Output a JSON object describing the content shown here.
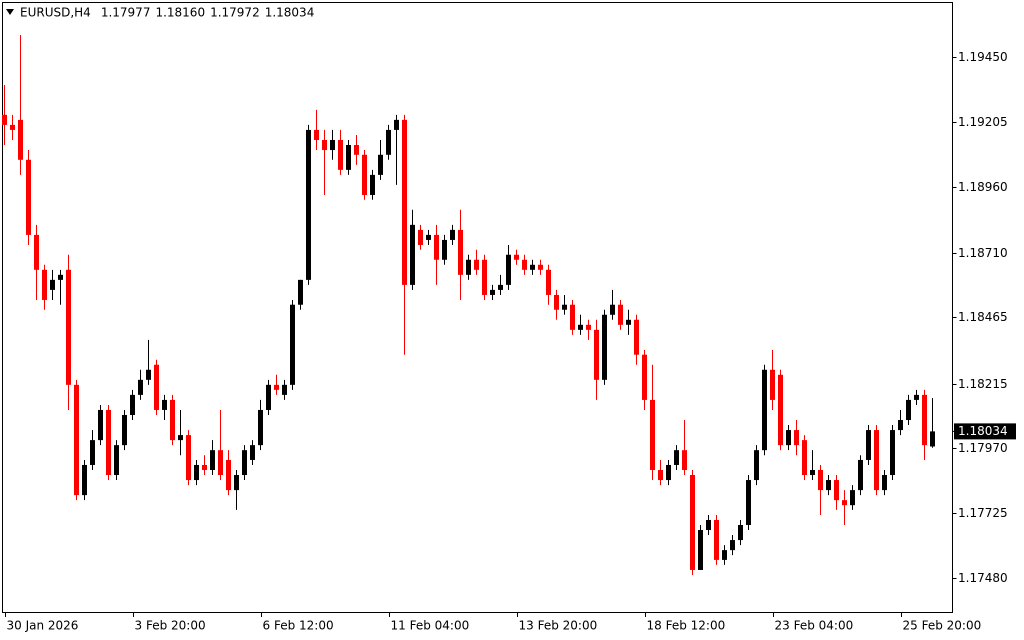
{
  "chart_data": {
    "type": "candlestick",
    "title": "EURUSD,H4",
    "info_labels": [
      "1.17977",
      "1.18160",
      "1.17972",
      "1.18034"
    ],
    "bull_color": "#000000",
    "bear_color": "#ff0000",
    "categories": [
      "30 Jan 2026",
      null,
      null,
      null,
      null,
      null,
      null,
      null,
      null,
      null,
      null,
      null,
      null,
      null,
      null,
      null,
      "3 Feb 20:00",
      null,
      null,
      null,
      null,
      null,
      null,
      null,
      null,
      null,
      null,
      null,
      null,
      null,
      null,
      null,
      "6 Feb 12:00",
      null,
      null,
      null,
      null,
      null,
      null,
      null,
      null,
      null,
      null,
      null,
      null,
      null,
      null,
      null,
      "11 Feb 04:00",
      null,
      null,
      null,
      null,
      null,
      null,
      null,
      null,
      null,
      null,
      null,
      null,
      null,
      null,
      null,
      "13 Feb 20:00",
      null,
      null,
      null,
      null,
      null,
      null,
      null,
      null,
      null,
      null,
      null,
      null,
      null,
      null,
      null,
      "18 Feb 12:00",
      null,
      null,
      null,
      null,
      null,
      null,
      null,
      null,
      null,
      null,
      null,
      null,
      null,
      null,
      null,
      "23 Feb 04:00",
      null,
      null,
      null,
      null,
      null,
      null,
      null,
      null,
      null,
      null,
      null,
      null,
      null,
      null,
      null,
      "25 Feb 20:00",
      null,
      null,
      null,
      null
    ],
    "open": [
      1.19231,
      1.19193,
      1.19212,
      1.19061,
      1.18777,
      1.18645,
      1.18569,
      1.18607,
      1.18645,
      1.1821,
      1.17793,
      1.17907,
      1.18001,
      1.18115,
      1.17869,
      1.17982,
      1.18096,
      1.18172,
      1.18229,
      1.18286,
      1.18115,
      1.18153,
      1.18001,
      1.1802,
      1.1785,
      1.17907,
      1.17888,
      1.17963,
      1.17926,
      1.17812,
      1.17869,
      1.17926,
      1.17982,
      1.18115,
      1.1821,
      1.18172,
      1.1821,
      1.18513,
      1.18607,
      1.19174,
      1.19136,
      1.19098,
      1.19136,
      1.19023,
      1.19117,
      1.1908,
      1.18928,
      1.19004,
      1.1908,
      1.19174,
      1.19212,
      1.18588,
      1.18796,
      1.18758,
      1.18777,
      1.18683,
      1.18758,
      1.18796,
      1.18626,
      1.18683,
      1.18683,
      1.1855,
      1.18569,
      1.18588,
      1.18702,
      1.18683,
      1.18645,
      1.18664,
      1.18645,
      1.1855,
      1.18494,
      1.18513,
      1.18418,
      1.18437,
      1.18418,
      1.18229,
      1.18475,
      1.18513,
      1.18437,
      1.18456,
      1.18324,
      1.18153,
      1.17888,
      1.1785,
      1.17907,
      1.17963,
      1.17869,
      1.1751,
      1.17661,
      1.17699,
      1.17548,
      1.17585,
      1.17623,
      1.1768,
      1.1785,
      1.17963,
      1.18267,
      1.18248,
      1.17982,
      1.18039,
      1.18001,
      1.17869,
      1.17888,
      1.17812,
      1.1785,
      1.17774,
      1.17755,
      1.17812,
      1.17926,
      1.18039,
      1.17812,
      1.17869,
      1.18039,
      1.18077,
      1.18153,
      1.18172,
      1.17977
    ],
    "high": [
      1.19344,
      1.19231,
      1.19533,
      1.19098,
      1.18815,
      1.18664,
      1.18645,
      1.18645,
      1.18702,
      1.18229,
      1.17926,
      1.18039,
      1.18134,
      1.18134,
      1.18001,
      1.18115,
      1.18191,
      1.18267,
      1.1838,
      1.18305,
      1.18172,
      1.18172,
      1.18115,
      1.18039,
      1.17926,
      1.17944,
      1.18001,
      1.18115,
      1.17963,
      1.17888,
      1.17982,
      1.18001,
      1.18153,
      1.18229,
      1.18248,
      1.18229,
      1.18531,
      1.18607,
      1.19193,
      1.1925,
      1.19174,
      1.19174,
      1.19174,
      1.19136,
      1.19155,
      1.19098,
      1.19023,
      1.19136,
      1.19193,
      1.19231,
      1.19231,
      1.18872,
      1.18815,
      1.18796,
      1.18815,
      1.18777,
      1.18815,
      1.18872,
      1.18702,
      1.18721,
      1.18702,
      1.18588,
      1.18626,
      1.18739,
      1.18721,
      1.18702,
      1.18683,
      1.18683,
      1.18664,
      1.18569,
      1.1855,
      1.18531,
      1.18475,
      1.18456,
      1.18456,
      1.18494,
      1.18569,
      1.18531,
      1.18494,
      1.18475,
      1.18342,
      1.18286,
      1.17926,
      1.17926,
      1.17982,
      1.18077,
      1.17888,
      1.1768,
      1.17718,
      1.17718,
      1.17604,
      1.17642,
      1.17699,
      1.17869,
      1.17982,
      1.18286,
      1.18342,
      1.18267,
      1.18058,
      1.18077,
      1.1802,
      1.17963,
      1.17907,
      1.17869,
      1.17869,
      1.17812,
      1.17831,
      1.17944,
      1.18058,
      1.18058,
      1.17888,
      1.18058,
      1.18115,
      1.18172,
      1.18191,
      1.18191,
      1.1816
    ],
    "low": [
      1.19117,
      1.19136,
      1.19004,
      1.18739,
      1.18531,
      1.18494,
      1.18531,
      1.18513,
      1.18115,
      1.17774,
      1.17774,
      1.17888,
      1.17982,
      1.1785,
      1.1785,
      1.17963,
      1.18077,
      1.18153,
      1.1821,
      1.18096,
      1.18077,
      1.17982,
      1.17944,
      1.17831,
      1.17831,
      1.17869,
      1.17869,
      1.1785,
      1.17793,
      1.17737,
      1.1785,
      1.17907,
      1.17963,
      1.18096,
      1.18172,
      1.18153,
      1.18191,
      1.18494,
      1.18588,
      1.19098,
      1.18928,
      1.19061,
      1.19004,
      1.19004,
      1.19042,
      1.1891,
      1.1891,
      1.18985,
      1.19061,
      1.18966,
      1.18324,
      1.18569,
      1.18721,
      1.18739,
      1.18588,
      1.18664,
      1.18739,
      1.18531,
      1.18607,
      1.18626,
      1.18531,
      1.18531,
      1.1855,
      1.18569,
      1.18664,
      1.18626,
      1.18626,
      1.18626,
      1.18513,
      1.18456,
      1.18475,
      1.18399,
      1.18399,
      1.1838,
      1.18153,
      1.1821,
      1.18456,
      1.18418,
      1.18399,
      1.18286,
      1.18115,
      1.1785,
      1.17831,
      1.17831,
      1.17888,
      1.17869,
      1.17491,
      1.1751,
      1.17642,
      1.17529,
      1.17529,
      1.17566,
      1.17604,
      1.17661,
      1.17831,
      1.17944,
      1.18115,
      1.17963,
      1.17963,
      1.17944,
      1.1785,
      1.1785,
      1.17718,
      1.17793,
      1.17737,
      1.1768,
      1.17737,
      1.17793,
      1.17907,
      1.17793,
      1.17793,
      1.1785,
      1.1802,
      1.18058,
      1.18134,
      1.17926,
      1.17972
    ],
    "close": [
      1.19193,
      1.19174,
      1.19061,
      1.18777,
      1.18645,
      1.18531,
      1.18607,
      1.18626,
      1.1821,
      1.17793,
      1.17907,
      1.18001,
      1.18115,
      1.17869,
      1.17982,
      1.18096,
      1.18172,
      1.18229,
      1.18267,
      1.18115,
      1.18153,
      1.18001,
      1.1802,
      1.1785,
      1.17907,
      1.17888,
      1.17963,
      1.17869,
      1.17812,
      1.17869,
      1.17963,
      1.17982,
      1.18115,
      1.1821,
      1.18191,
      1.1821,
      1.18513,
      1.18607,
      1.19174,
      1.19136,
      1.19098,
      1.19136,
      1.19023,
      1.19117,
      1.1908,
      1.18928,
      1.19004,
      1.1908,
      1.19174,
      1.19212,
      1.18588,
      1.18815,
      1.18739,
      1.18777,
      1.18683,
      1.18758,
      1.18796,
      1.18626,
      1.18683,
      1.18645,
      1.1855,
      1.18569,
      1.18588,
      1.18702,
      1.18683,
      1.18645,
      1.18664,
      1.18645,
      1.1855,
      1.18494,
      1.18513,
      1.18418,
      1.18437,
      1.18418,
      1.18229,
      1.18475,
      1.18513,
      1.18437,
      1.18456,
      1.18324,
      1.18153,
      1.17888,
      1.1785,
      1.17907,
      1.17963,
      1.17888,
      1.1751,
      1.17661,
      1.17699,
      1.17548,
      1.17585,
      1.17623,
      1.1768,
      1.1785,
      1.17963,
      1.18267,
      1.18153,
      1.17982,
      1.18039,
      1.17982,
      1.17869,
      1.17888,
      1.17812,
      1.1785,
      1.17774,
      1.17755,
      1.17812,
      1.17926,
      1.18039,
      1.17812,
      1.17869,
      1.18039,
      1.18077,
      1.18153,
      1.18172,
      1.17982,
      1.18034
    ],
    "ylim": [
      1.17351,
      1.19654
    ],
    "yticks": [
      {
        "value": 1.1945,
        "label": "1.19450"
      },
      {
        "value": 1.19205,
        "label": "1.19205"
      },
      {
        "value": 1.1896,
        "label": "1.18960"
      },
      {
        "value": 1.1871,
        "label": "1.18710"
      },
      {
        "value": 1.18465,
        "label": "1.18465"
      },
      {
        "value": 1.18215,
        "label": "1.18215"
      },
      {
        "value": 1.1797,
        "label": "1.17970"
      },
      {
        "value": 1.17725,
        "label": "1.17725"
      },
      {
        "value": 1.1748,
        "label": "1.17480"
      }
    ],
    "grid": false
  }
}
